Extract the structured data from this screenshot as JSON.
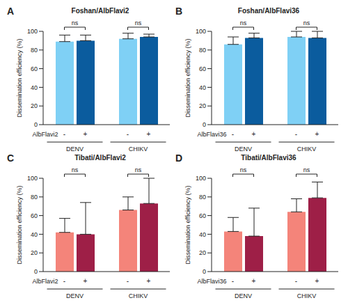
{
  "chart_data": [
    {
      "type": "bar",
      "panel": "A",
      "title": "Foshan/AlbFlavi2",
      "y_label": "Dissemination efficiency (%)",
      "series_label": "AlbFlavi2",
      "categories": [
        "DENV",
        "CHIKV"
      ],
      "annotations": [
        "ns",
        "ns"
      ],
      "series": [
        {
          "name": "-",
          "color": "#7fd0f5",
          "values": [
            89,
            92
          ],
          "errors": [
            7,
            6
          ]
        },
        {
          "name": "+",
          "color": "#0b5c9e",
          "values": [
            90,
            94
          ],
          "errors": [
            6,
            3
          ]
        }
      ],
      "ylim": [
        0,
        100
      ],
      "yticks": [
        0,
        20,
        40,
        60,
        80,
        100
      ]
    },
    {
      "type": "bar",
      "panel": "B",
      "title": "Foshan/AlbFlavi36",
      "y_label": "Dissemination efficiency (%)",
      "series_label": "AlbFlavi36",
      "categories": [
        "DENV",
        "CHIKV"
      ],
      "annotations": [
        "ns",
        "ns"
      ],
      "series": [
        {
          "name": "-",
          "color": "#7fd0f5",
          "values": [
            86,
            94
          ],
          "errors": [
            8,
            6
          ]
        },
        {
          "name": "+",
          "color": "#0b5c9e",
          "values": [
            93,
            93
          ],
          "errors": [
            5,
            7
          ]
        }
      ],
      "ylim": [
        0,
        100
      ],
      "yticks": [
        0,
        20,
        40,
        60,
        80,
        100
      ]
    },
    {
      "type": "bar",
      "panel": "C",
      "title": "Tibati/AlbFlavi2",
      "y_label": "Dissemination efficiency (%)",
      "series_label": "AlbFlavi2",
      "categories": [
        "DENV",
        "CHIKV"
      ],
      "annotations": [
        "ns",
        "ns"
      ],
      "series": [
        {
          "name": "-",
          "color": "#f4847a",
          "values": [
            42,
            66
          ],
          "errors": [
            15,
            14
          ]
        },
        {
          "name": "+",
          "color": "#9e1f47",
          "values": [
            40,
            73
          ],
          "errors": [
            34,
            27
          ]
        }
      ],
      "ylim": [
        0,
        100
      ],
      "yticks": [
        0,
        20,
        40,
        60,
        80,
        100
      ]
    },
    {
      "type": "bar",
      "panel": "D",
      "title": "Tibati/AlbFlavi36",
      "y_label": "Dissemination efficiency (%)",
      "series_label": "AlbFlavi36",
      "categories": [
        "DENV",
        "CHIKV"
      ],
      "annotations": [
        "ns",
        "ns"
      ],
      "series": [
        {
          "name": "-",
          "color": "#f4847a",
          "values": [
            43,
            64
          ],
          "errors": [
            15,
            14
          ]
        },
        {
          "name": "+",
          "color": "#9e1f47",
          "values": [
            38,
            79
          ],
          "errors": [
            30,
            17
          ]
        }
      ],
      "ylim": [
        0,
        100
      ],
      "yticks": [
        0,
        20,
        40,
        60,
        80,
        100
      ]
    }
  ]
}
